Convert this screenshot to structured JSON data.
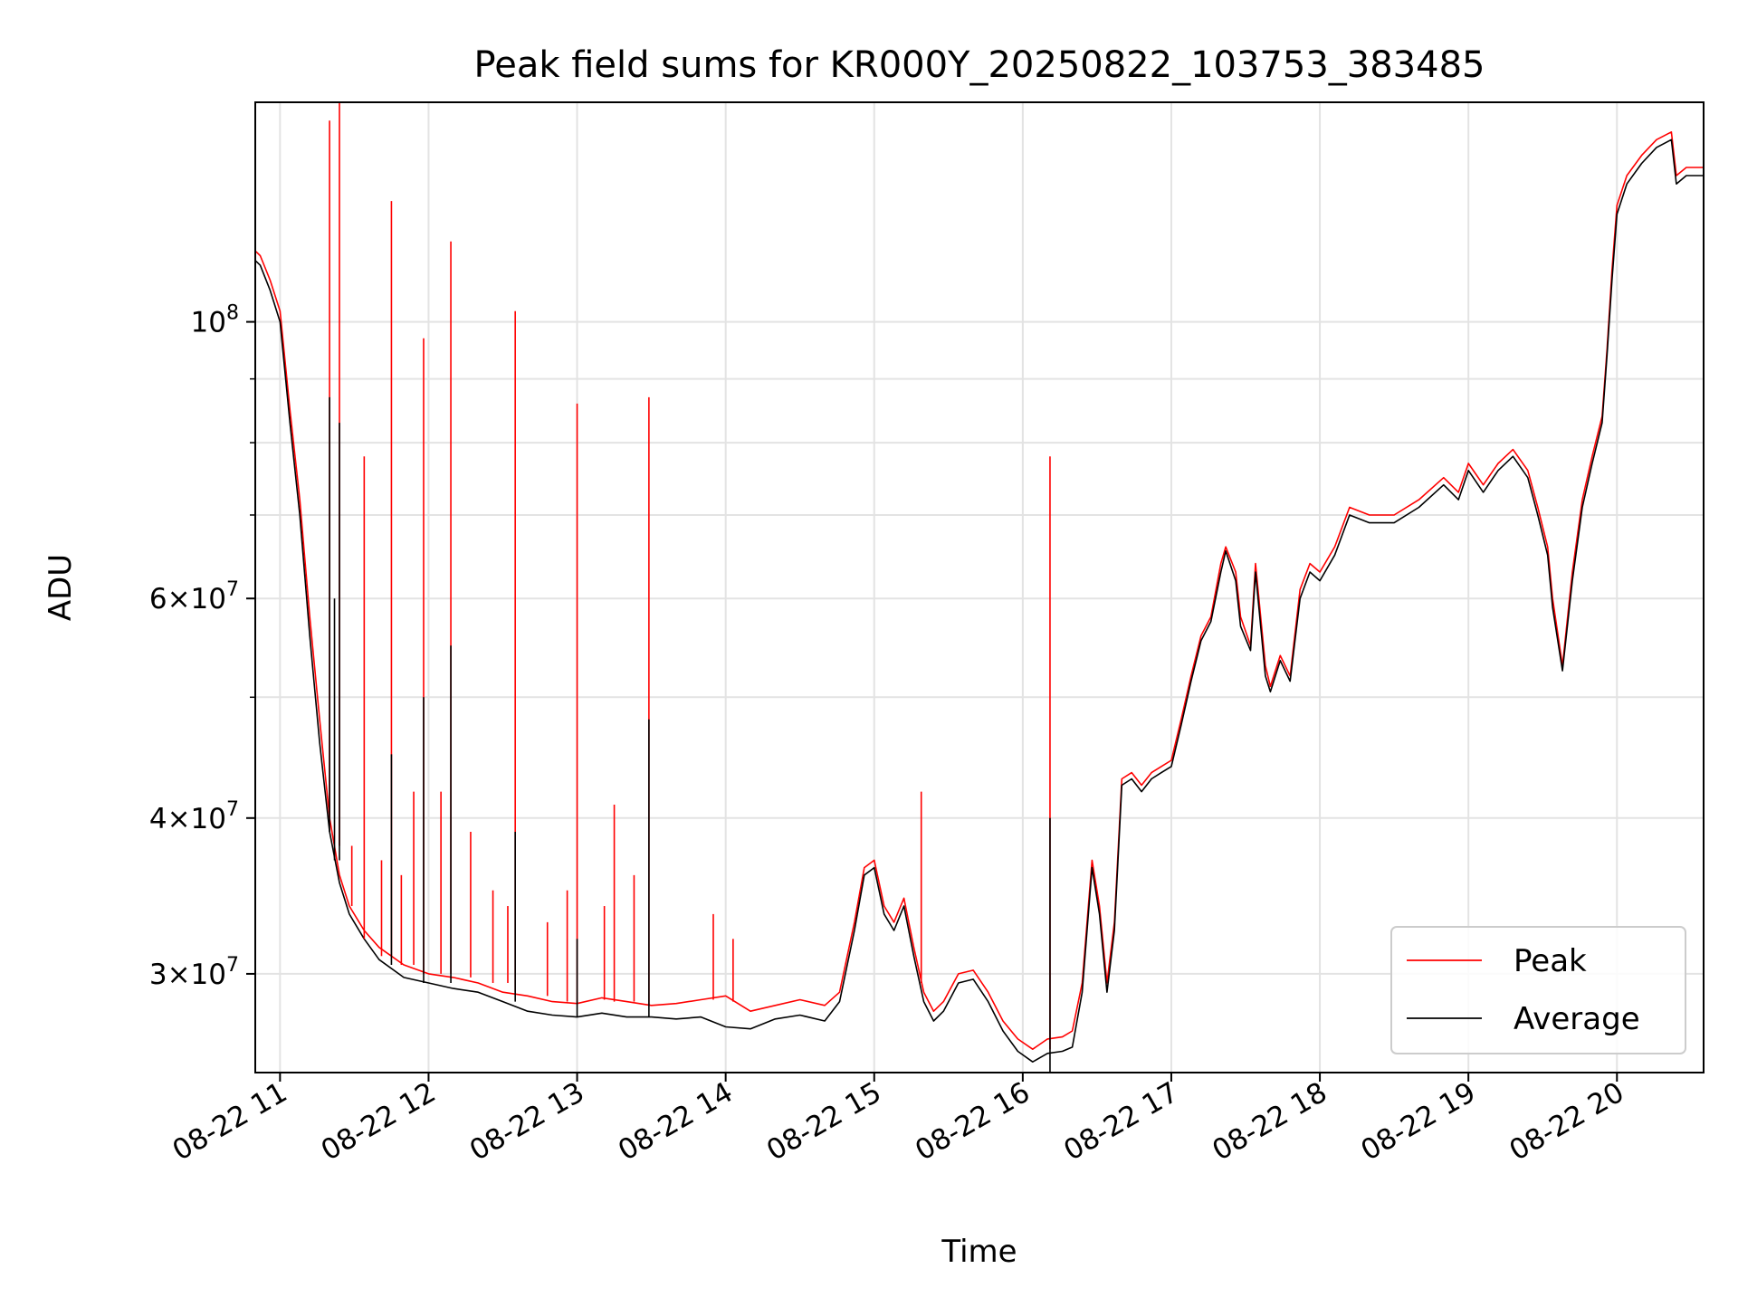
{
  "chart_data": {
    "type": "line",
    "title": "Peak field sums for KR000Y_20250822_103753_383485",
    "xlabel": "Time",
    "ylabel": "ADU",
    "y_scale": "log",
    "ylim": [
      25000000,
      150000000
    ],
    "xlim": [
      "2025-08-22 10:50",
      "2025-08-22 20:35"
    ],
    "x_ticks": [
      {
        "t": "2025-08-22 11:00",
        "label": "08-22 11"
      },
      {
        "t": "2025-08-22 12:00",
        "label": "08-22 12"
      },
      {
        "t": "2025-08-22 13:00",
        "label": "08-22 13"
      },
      {
        "t": "2025-08-22 14:00",
        "label": "08-22 14"
      },
      {
        "t": "2025-08-22 15:00",
        "label": "08-22 15"
      },
      {
        "t": "2025-08-22 16:00",
        "label": "08-22 16"
      },
      {
        "t": "2025-08-22 17:00",
        "label": "08-22 17"
      },
      {
        "t": "2025-08-22 18:00",
        "label": "08-22 18"
      },
      {
        "t": "2025-08-22 19:00",
        "label": "08-22 19"
      },
      {
        "t": "2025-08-22 20:00",
        "label": "08-22 20"
      }
    ],
    "y_ticks": [
      {
        "value": 100000000,
        "base": "10",
        "exp": "8",
        "mant": ""
      },
      {
        "value": 60000000,
        "base": "10",
        "exp": "7",
        "mant": "6"
      },
      {
        "value": 40000000,
        "base": "10",
        "exp": "7",
        "mant": "4"
      },
      {
        "value": 30000000,
        "base": "10",
        "exp": "7",
        "mant": "3"
      }
    ],
    "y_minor_ticks": [
      50000000,
      70000000,
      80000000,
      90000000
    ],
    "grid": true,
    "legend": {
      "position": "lower-right"
    },
    "series": [
      {
        "name": "Peak",
        "color": "#ff0000",
        "x": [
          "2025-08-22 10:50",
          "2025-08-22 10:52",
          "2025-08-22 10:56",
          "2025-08-22 11:00",
          "2025-08-22 11:04",
          "2025-08-22 11:08",
          "2025-08-22 11:12",
          "2025-08-22 11:16",
          "2025-08-22 11:20",
          "2025-08-22 11:24",
          "2025-08-22 11:28",
          "2025-08-22 11:34",
          "2025-08-22 11:40",
          "2025-08-22 11:50",
          "2025-08-22 12:00",
          "2025-08-22 12:10",
          "2025-08-22 12:20",
          "2025-08-22 12:30",
          "2025-08-22 12:40",
          "2025-08-22 12:50",
          "2025-08-22 13:00",
          "2025-08-22 13:10",
          "2025-08-22 13:20",
          "2025-08-22 13:30",
          "2025-08-22 13:40",
          "2025-08-22 13:50",
          "2025-08-22 14:00",
          "2025-08-22 14:10",
          "2025-08-22 14:20",
          "2025-08-22 14:30",
          "2025-08-22 14:40",
          "2025-08-22 14:46",
          "2025-08-22 14:52",
          "2025-08-22 14:56",
          "2025-08-22 15:00",
          "2025-08-22 15:04",
          "2025-08-22 15:08",
          "2025-08-22 15:12",
          "2025-08-22 15:16",
          "2025-08-22 15:20",
          "2025-08-22 15:24",
          "2025-08-22 15:28",
          "2025-08-22 15:34",
          "2025-08-22 15:40",
          "2025-08-22 15:46",
          "2025-08-22 15:52",
          "2025-08-22 15:58",
          "2025-08-22 16:04",
          "2025-08-22 16:10",
          "2025-08-22 16:16",
          "2025-08-22 16:20",
          "2025-08-22 16:24",
          "2025-08-22 16:28",
          "2025-08-22 16:31",
          "2025-08-22 16:34",
          "2025-08-22 16:37",
          "2025-08-22 16:40",
          "2025-08-22 16:44",
          "2025-08-22 16:48",
          "2025-08-22 16:52",
          "2025-08-22 16:56",
          "2025-08-22 17:00",
          "2025-08-22 17:04",
          "2025-08-22 17:08",
          "2025-08-22 17:12",
          "2025-08-22 17:16",
          "2025-08-22 17:20",
          "2025-08-22 17:22",
          "2025-08-22 17:26",
          "2025-08-22 17:28",
          "2025-08-22 17:32",
          "2025-08-22 17:34",
          "2025-08-22 17:38",
          "2025-08-22 17:40",
          "2025-08-22 17:44",
          "2025-08-22 17:48",
          "2025-08-22 17:52",
          "2025-08-22 17:56",
          "2025-08-22 18:00",
          "2025-08-22 18:06",
          "2025-08-22 18:12",
          "2025-08-22 18:20",
          "2025-08-22 18:30",
          "2025-08-22 18:40",
          "2025-08-22 18:50",
          "2025-08-22 18:56",
          "2025-08-22 19:00",
          "2025-08-22 19:06",
          "2025-08-22 19:12",
          "2025-08-22 19:18",
          "2025-08-22 19:24",
          "2025-08-22 19:28",
          "2025-08-22 19:32",
          "2025-08-22 19:34",
          "2025-08-22 19:38",
          "2025-08-22 19:42",
          "2025-08-22 19:46",
          "2025-08-22 19:50",
          "2025-08-22 19:54",
          "2025-08-22 19:56",
          "2025-08-22 19:58",
          "2025-08-22 20:00",
          "2025-08-22 20:04",
          "2025-08-22 20:10",
          "2025-08-22 20:16",
          "2025-08-22 20:22",
          "2025-08-22 20:24",
          "2025-08-22 20:28",
          "2025-08-22 20:35"
        ],
        "y": [
          114000000,
          113000000,
          108000000,
          102000000,
          85000000,
          72000000,
          58000000,
          48000000,
          40000000,
          36000000,
          34000000,
          32500000,
          31500000,
          30500000,
          30000000,
          29800000,
          29500000,
          29000000,
          28800000,
          28500000,
          28400000,
          28700000,
          28500000,
          28300000,
          28400000,
          28600000,
          28800000,
          28000000,
          28300000,
          28600000,
          28300000,
          29000000,
          33000000,
          36500000,
          37000000,
          34000000,
          33000000,
          34500000,
          31500000,
          29000000,
          28000000,
          28500000,
          30000000,
          30200000,
          29000000,
          27500000,
          26600000,
          26100000,
          26600000,
          26700000,
          27000000,
          29500000,
          37000000,
          34000000,
          29500000,
          33000000,
          43000000,
          43500000,
          42500000,
          43500000,
          44000000,
          44500000,
          48000000,
          52000000,
          56000000,
          58000000,
          64000000,
          66000000,
          63000000,
          58000000,
          55000000,
          64000000,
          53000000,
          51000000,
          54000000,
          52000000,
          61000000,
          64000000,
          63000000,
          66000000,
          71000000,
          70000000,
          70000000,
          72000000,
          75000000,
          73000000,
          77000000,
          74000000,
          77000000,
          79000000,
          76000000,
          71000000,
          66000000,
          60000000,
          53000000,
          63000000,
          72000000,
          78000000,
          84000000,
          95000000,
          110000000,
          124000000,
          131000000,
          136000000,
          140000000,
          142000000,
          131000000,
          133000000,
          133000000
        ]
      },
      {
        "name": "Average",
        "color": "#000000",
        "x": [
          "2025-08-22 10:50",
          "2025-08-22 10:52",
          "2025-08-22 10:56",
          "2025-08-22 11:00",
          "2025-08-22 11:04",
          "2025-08-22 11:08",
          "2025-08-22 11:12",
          "2025-08-22 11:16",
          "2025-08-22 11:20",
          "2025-08-22 11:24",
          "2025-08-22 11:28",
          "2025-08-22 11:34",
          "2025-08-22 11:40",
          "2025-08-22 11:50",
          "2025-08-22 12:00",
          "2025-08-22 12:10",
          "2025-08-22 12:20",
          "2025-08-22 12:30",
          "2025-08-22 12:40",
          "2025-08-22 12:50",
          "2025-08-22 13:00",
          "2025-08-22 13:10",
          "2025-08-22 13:20",
          "2025-08-22 13:30",
          "2025-08-22 13:40",
          "2025-08-22 13:50",
          "2025-08-22 14:00",
          "2025-08-22 14:10",
          "2025-08-22 14:20",
          "2025-08-22 14:30",
          "2025-08-22 14:40",
          "2025-08-22 14:46",
          "2025-08-22 14:52",
          "2025-08-22 14:56",
          "2025-08-22 15:00",
          "2025-08-22 15:04",
          "2025-08-22 15:08",
          "2025-08-22 15:12",
          "2025-08-22 15:16",
          "2025-08-22 15:20",
          "2025-08-22 15:24",
          "2025-08-22 15:28",
          "2025-08-22 15:34",
          "2025-08-22 15:40",
          "2025-08-22 15:46",
          "2025-08-22 15:52",
          "2025-08-22 15:58",
          "2025-08-22 16:04",
          "2025-08-22 16:10",
          "2025-08-22 16:16",
          "2025-08-22 16:20",
          "2025-08-22 16:24",
          "2025-08-22 16:28",
          "2025-08-22 16:31",
          "2025-08-22 16:34",
          "2025-08-22 16:37",
          "2025-08-22 16:40",
          "2025-08-22 16:44",
          "2025-08-22 16:48",
          "2025-08-22 16:52",
          "2025-08-22 16:56",
          "2025-08-22 17:00",
          "2025-08-22 17:04",
          "2025-08-22 17:08",
          "2025-08-22 17:12",
          "2025-08-22 17:16",
          "2025-08-22 17:20",
          "2025-08-22 17:22",
          "2025-08-22 17:26",
          "2025-08-22 17:28",
          "2025-08-22 17:32",
          "2025-08-22 17:34",
          "2025-08-22 17:38",
          "2025-08-22 17:40",
          "2025-08-22 17:44",
          "2025-08-22 17:48",
          "2025-08-22 17:52",
          "2025-08-22 17:56",
          "2025-08-22 18:00",
          "2025-08-22 18:06",
          "2025-08-22 18:12",
          "2025-08-22 18:20",
          "2025-08-22 18:30",
          "2025-08-22 18:40",
          "2025-08-22 18:50",
          "2025-08-22 18:56",
          "2025-08-22 19:00",
          "2025-08-22 19:06",
          "2025-08-22 19:12",
          "2025-08-22 19:18",
          "2025-08-22 19:24",
          "2025-08-22 19:28",
          "2025-08-22 19:32",
          "2025-08-22 19:34",
          "2025-08-22 19:38",
          "2025-08-22 19:42",
          "2025-08-22 19:46",
          "2025-08-22 19:50",
          "2025-08-22 19:54",
          "2025-08-22 19:56",
          "2025-08-22 19:58",
          "2025-08-22 20:00",
          "2025-08-22 20:04",
          "2025-08-22 20:10",
          "2025-08-22 20:16",
          "2025-08-22 20:22",
          "2025-08-22 20:24",
          "2025-08-22 20:28",
          "2025-08-22 20:35"
        ],
        "y": [
          112000000,
          111000000,
          106000000,
          100000000,
          83000000,
          70000000,
          56000000,
          46000000,
          39000000,
          35500000,
          33500000,
          32000000,
          30800000,
          29800000,
          29500000,
          29200000,
          29000000,
          28500000,
          28000000,
          27800000,
          27700000,
          27900000,
          27700000,
          27700000,
          27600000,
          27700000,
          27200000,
          27100000,
          27600000,
          27800000,
          27500000,
          28500000,
          32500000,
          36000000,
          36500000,
          33500000,
          32500000,
          34000000,
          31000000,
          28500000,
          27500000,
          28000000,
          29500000,
          29700000,
          28500000,
          27000000,
          26000000,
          25500000,
          25900000,
          26000000,
          26200000,
          29000000,
          36500000,
          33500000,
          29000000,
          32500000,
          42500000,
          43000000,
          42000000,
          43000000,
          43500000,
          44000000,
          47500000,
          51500000,
          55500000,
          57500000,
          63000000,
          65500000,
          62000000,
          57000000,
          54500000,
          63000000,
          52000000,
          50500000,
          53500000,
          51500000,
          60000000,
          63000000,
          62000000,
          65000000,
          70000000,
          69000000,
          69000000,
          71000000,
          74000000,
          72000000,
          76000000,
          73000000,
          76000000,
          78000000,
          75000000,
          70000000,
          65000000,
          59000000,
          52500000,
          62000000,
          71000000,
          77000000,
          83000000,
          94000000,
          108000000,
          122000000,
          129000000,
          134000000,
          138000000,
          140000000,
          129000000,
          131000000,
          131000000
        ]
      }
    ],
    "spikes": [
      {
        "name": "Peak",
        "color": "#ff0000",
        "points": [
          [
            "2025-08-22 11:20",
            40000000,
            145000000
          ],
          [
            "2025-08-22 11:24",
            38000000,
            150000000
          ],
          [
            "2025-08-22 11:29",
            34000000,
            38000000
          ],
          [
            "2025-08-22 11:34",
            32000000,
            78000000
          ],
          [
            "2025-08-22 11:41",
            31000000,
            37000000
          ],
          [
            "2025-08-22 11:45",
            31000000,
            125000000
          ],
          [
            "2025-08-22 11:49",
            30500000,
            36000000
          ],
          [
            "2025-08-22 11:54",
            30500000,
            42000000
          ],
          [
            "2025-08-22 11:58",
            30000000,
            97000000
          ],
          [
            "2025-08-22 12:05",
            30000000,
            42000000
          ],
          [
            "2025-08-22 12:09",
            30000000,
            116000000
          ],
          [
            "2025-08-22 12:17",
            29800000,
            39000000
          ],
          [
            "2025-08-22 12:26",
            29500000,
            35000000
          ],
          [
            "2025-08-22 12:32",
            29500000,
            34000000
          ],
          [
            "2025-08-22 12:35",
            29000000,
            102000000
          ],
          [
            "2025-08-22 12:48",
            28800000,
            33000000
          ],
          [
            "2025-08-22 12:56",
            28500000,
            35000000
          ],
          [
            "2025-08-22 13:00",
            28400000,
            86000000
          ],
          [
            "2025-08-22 13:11",
            28600000,
            34000000
          ],
          [
            "2025-08-22 13:15",
            28500000,
            41000000
          ],
          [
            "2025-08-22 13:23",
            28500000,
            36000000
          ],
          [
            "2025-08-22 13:29",
            28300000,
            87000000
          ],
          [
            "2025-08-22 13:55",
            28600000,
            33500000
          ],
          [
            "2025-08-22 14:03",
            28500000,
            32000000
          ],
          [
            "2025-08-22 15:19",
            29500000,
            42000000
          ],
          [
            "2025-08-22 16:11",
            26100000,
            78000000
          ]
        ]
      },
      {
        "name": "Average",
        "color": "#000000",
        "points": [
          [
            "2025-08-22 11:20",
            39000000,
            87000000
          ],
          [
            "2025-08-22 11:22",
            37000000,
            60000000
          ],
          [
            "2025-08-22 11:24",
            37000000,
            83000000
          ],
          [
            "2025-08-22 11:45",
            30500000,
            45000000
          ],
          [
            "2025-08-22 11:58",
            29500000,
            50000000
          ],
          [
            "2025-08-22 12:09",
            29500000,
            55000000
          ],
          [
            "2025-08-22 12:35",
            28500000,
            39000000
          ],
          [
            "2025-08-22 13:00",
            27700000,
            32000000
          ],
          [
            "2025-08-22 13:29",
            27700000,
            48000000
          ],
          [
            "2025-08-22 16:11",
            25000000,
            40000000
          ]
        ]
      }
    ]
  }
}
